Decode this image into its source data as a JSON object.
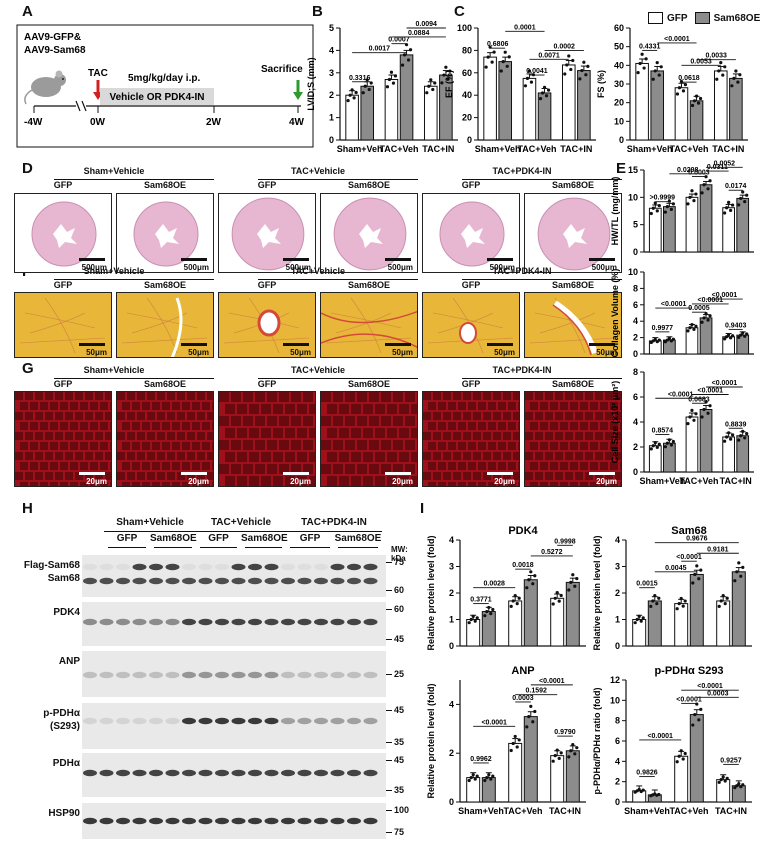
{
  "panels": {
    "A": {
      "letter": "A",
      "model": [
        "AAV9-GFP&",
        "AAV9-Sam68"
      ],
      "tac": "TAC",
      "dose": "5mg/kg/day i.p.",
      "treatment": "Vehicle OR PDK4-IN",
      "sacrifice": "Sacrifice",
      "ticks": [
        "-4W",
        "0W",
        "2W",
        "4W"
      ]
    },
    "B": {
      "letter": "B"
    },
    "C": {
      "letter": "C"
    },
    "D": {
      "letter": "D"
    },
    "E": {
      "letter": "E"
    },
    "F": {
      "letter": "F"
    },
    "G": {
      "letter": "G"
    },
    "H": {
      "letter": "H"
    },
    "I": {
      "letter": "I"
    }
  },
  "legend": {
    "gfp": "GFP",
    "oe": "Sam68OE",
    "gfp_color": "#ffffff",
    "oe_color": "#8c8c8c"
  },
  "groups3": [
    "Sham+Veh",
    "TAC+Veh",
    "TAC+IN"
  ],
  "histology": {
    "group_titles": [
      "Sham+Vehicle",
      "TAC+Vehicle",
      "TAC+PDK4-IN"
    ],
    "sub_labels": [
      "GFP",
      "Sam68OE"
    ],
    "D_scale": "500μm",
    "F_scale": "50μm",
    "G_scale": "20μm",
    "D_color": "#e7b7d2",
    "F_color": "#e8b73a",
    "G_color": "#a0101a"
  },
  "blot": {
    "group_titles": [
      "Sham+Vehicle",
      "TAC+Vehicle",
      "TAC+PDK4-IN"
    ],
    "sub_labels": [
      "GFP",
      "Sam68OE"
    ],
    "mw_header": [
      "MW:",
      "kDa"
    ],
    "rows": [
      {
        "labels": [
          "Flag-Sam68",
          "Sam68"
        ],
        "mw": [
          "75",
          "60"
        ]
      },
      {
        "labels": [
          "PDK4"
        ],
        "mw": [
          "60",
          "45"
        ]
      },
      {
        "labels": [
          "ANP"
        ],
        "mw": [
          "25"
        ]
      },
      {
        "labels": [
          "p-PDHα",
          "(S293)"
        ],
        "mw": [
          "45",
          "35"
        ]
      },
      {
        "labels": [
          "PDHα"
        ],
        "mw": [
          "45",
          "35"
        ]
      },
      {
        "labels": [
          "HSP90"
        ],
        "mw": [
          "100",
          "75"
        ]
      }
    ]
  },
  "chart_data": [
    {
      "id": "B",
      "type": "bar",
      "ylabel": "LVID;S (mm)",
      "ylim": [
        0,
        5
      ],
      "yticks": [
        0,
        1,
        2,
        3,
        4,
        5
      ],
      "categories": [
        "Sham+Veh",
        "TAC+Veh",
        "TAC+IN"
      ],
      "series": [
        {
          "name": "GFP",
          "values": [
            2.0,
            2.7,
            2.4
          ]
        },
        {
          "name": "Sam68OE",
          "values": [
            2.4,
            3.8,
            2.9
          ]
        }
      ],
      "pvalues": [
        [
          "0.3316",
          0,
          1,
          2.6
        ],
        [
          "0.0017",
          0,
          3,
          3.9
        ],
        [
          "0.0007",
          2,
          3,
          4.3
        ],
        [
          "0.0884",
          2,
          5,
          4.6
        ],
        [
          "0.0094",
          3,
          5,
          5.0
        ]
      ]
    },
    {
      "id": "C1",
      "type": "bar",
      "ylabel": "EF (%)",
      "ylim": [
        0,
        100
      ],
      "yticks": [
        0,
        20,
        40,
        60,
        80,
        100
      ],
      "categories": [
        "Sham+Veh",
        "TAC+Veh",
        "TAC+IN"
      ],
      "series": [
        {
          "name": "GFP",
          "values": [
            74,
            55,
            67
          ]
        },
        {
          "name": "Sam68OE",
          "values": [
            70,
            42,
            62
          ]
        }
      ],
      "pvalues": [
        [
          "0.6806",
          0,
          1,
          82
        ],
        [
          "0.0041",
          2,
          3,
          58
        ],
        [
          "0.0071",
          2,
          4,
          72
        ],
        [
          "0.0002",
          3,
          5,
          80
        ],
        [
          "0.0001",
          1,
          3,
          97
        ]
      ]
    },
    {
      "id": "C2",
      "type": "bar",
      "ylabel": "FS (%)",
      "ylim": [
        0,
        60
      ],
      "yticks": [
        0,
        10,
        20,
        30,
        40,
        50,
        60
      ],
      "categories": [
        "Sham+Veh",
        "TAC+Veh",
        "TAC+IN"
      ],
      "series": [
        {
          "name": "GFP",
          "values": [
            41,
            28,
            37
          ]
        },
        {
          "name": "Sam68OE",
          "values": [
            37,
            21,
            33
          ]
        }
      ],
      "pvalues": [
        [
          "0.4331",
          0,
          1,
          48
        ],
        [
          "0.0618",
          2,
          3,
          31
        ],
        [
          "0.0053",
          2,
          4,
          40
        ],
        [
          "0.0033",
          3,
          5,
          43
        ],
        [
          "<0.0001",
          1,
          3,
          52
        ]
      ]
    },
    {
      "id": "E",
      "type": "bar",
      "ylabel": "HW/TL (mg/mm)",
      "ylim": [
        0,
        15
      ],
      "yticks": [
        0,
        5,
        10,
        15
      ],
      "categories": [
        "Sham+Veh",
        "TAC+Veh",
        "TAC+IN"
      ],
      "series": [
        {
          "name": "GFP",
          "values": [
            8.0,
            10.0,
            8.1
          ]
        },
        {
          "name": "Sam68OE",
          "values": [
            8.3,
            12.3,
            9.8
          ]
        }
      ],
      "pvalues": [
        [
          ">0.9999",
          0,
          1,
          9.2
        ],
        [
          "0.0003",
          2,
          3,
          13.8
        ],
        [
          "0.0174",
          4,
          5,
          11.3
        ],
        [
          "0.0298",
          1,
          3,
          14.3
        ],
        [
          "0.0311",
          3,
          4,
          14.8
        ],
        [
          "0.0052",
          3,
          5,
          15.5
        ]
      ]
    },
    {
      "id": "F",
      "type": "bar",
      "ylabel": "Collagen Volume (%)",
      "ylim": [
        0,
        10
      ],
      "yticks": [
        0,
        2,
        4,
        6,
        8,
        10
      ],
      "categories": [
        "Sham+Veh",
        "TAC+Veh",
        "TAC+IN"
      ],
      "series": [
        {
          "name": "GFP",
          "values": [
            1.6,
            3.2,
            2.1
          ]
        },
        {
          "name": "Sam68OE",
          "values": [
            1.7,
            4.4,
            2.3
          ]
        }
      ],
      "pvalues": [
        [
          "0.9977",
          0,
          1,
          2.7
        ],
        [
          "0.0005",
          2,
          3,
          5.1
        ],
        [
          "0.9403",
          4,
          5,
          3.0
        ],
        [
          "<0.0001",
          0,
          2,
          5.6
        ],
        [
          "<0.0001",
          2,
          4,
          6.1
        ],
        [
          "<0.0001",
          3,
          5,
          6.7
        ]
      ]
    },
    {
      "id": "G",
      "type": "bar",
      "ylabel": "Cell Size (x10² μm²)",
      "ylim": [
        0,
        8
      ],
      "yticks": [
        0,
        2,
        4,
        6,
        8
      ],
      "categories": [
        "Sham+Veh",
        "TAC+Veh",
        "TAC+IN"
      ],
      "series": [
        {
          "name": "GFP",
          "values": [
            2.1,
            4.4,
            2.8
          ]
        },
        {
          "name": "Sam68OE",
          "values": [
            2.3,
            5.0,
            2.9
          ]
        }
      ],
      "pvalues": [
        [
          "0.8574",
          0,
          1,
          3.0
        ],
        [
          "0.0683",
          2,
          3,
          5.5
        ],
        [
          "0.8839",
          4,
          5,
          3.5
        ],
        [
          "<0.0001",
          2,
          4,
          6.2
        ],
        [
          "<0.0001",
          3,
          5,
          6.8
        ],
        [
          "<0.0001",
          0,
          3,
          5.9
        ]
      ]
    },
    {
      "id": "I1",
      "type": "bar",
      "title": "PDK4",
      "ylabel": "Relative protein level (fold)",
      "ylim": [
        0,
        4
      ],
      "yticks": [
        0,
        1,
        2,
        3,
        4
      ],
      "categories": [
        "Sham+Veh",
        "TAC+Veh",
        "TAC+IN"
      ],
      "series": [
        {
          "name": "GFP",
          "values": [
            1.0,
            1.7,
            1.8
          ]
        },
        {
          "name": "Sam68OE",
          "values": [
            1.3,
            2.5,
            2.4
          ]
        }
      ],
      "pvalues": [
        [
          "0.3771",
          0,
          1,
          1.6
        ],
        [
          "0.0028",
          0,
          2,
          2.2
        ],
        [
          "0.0018",
          2,
          3,
          2.9
        ],
        [
          "0.5272",
          3,
          5,
          3.4
        ],
        [
          "0.9998",
          4,
          5,
          3.8
        ]
      ]
    },
    {
      "id": "I2",
      "type": "bar",
      "title": "Sam68",
      "ylabel": "Relative protein level (fold)",
      "ylim": [
        0,
        4
      ],
      "yticks": [
        0,
        1,
        2,
        3,
        4
      ],
      "categories": [
        "Sham+Veh",
        "TAC+Veh",
        "TAC+IN"
      ],
      "series": [
        {
          "name": "GFP",
          "values": [
            1.0,
            1.6,
            1.7
          ]
        },
        {
          "name": "Sam68OE",
          "values": [
            1.7,
            2.7,
            2.8
          ]
        }
      ],
      "pvalues": [
        [
          "0.0015",
          0,
          1,
          2.2
        ],
        [
          "0.0045",
          1,
          3,
          2.8
        ],
        [
          "<0.0001",
          2,
          3,
          3.2
        ],
        [
          "0.9181",
          3,
          5,
          3.5
        ],
        [
          "0.9676",
          1,
          5,
          3.9
        ]
      ]
    },
    {
      "id": "I3",
      "type": "bar",
      "title": "ANP",
      "ylabel": "Relative protein level (fold)",
      "ylim": [
        0,
        5
      ],
      "yticks": [
        0,
        2,
        4
      ],
      "categories": [
        "Sham+Veh",
        "TAC+Veh",
        "TAC+IN"
      ],
      "series": [
        {
          "name": "GFP",
          "values": [
            1.0,
            2.4,
            1.9
          ]
        },
        {
          "name": "Sam68OE",
          "values": [
            1.0,
            3.5,
            2.1
          ]
        }
      ],
      "pvalues": [
        [
          "0.9962",
          0,
          1,
          1.6
        ],
        [
          "<0.0001",
          0,
          2,
          3.1
        ],
        [
          "0.0003",
          2,
          3,
          4.1
        ],
        [
          "0.9790",
          4,
          5,
          2.7
        ],
        [
          "0.1592",
          2,
          4,
          4.4
        ],
        [
          "<0.0001",
          3,
          5,
          4.8
        ]
      ]
    },
    {
      "id": "I4",
      "type": "bar",
      "title": "p-PDHα S293",
      "ylabel": "p-PDHα/PDHα ratio (fold)",
      "ylim": [
        0,
        12
      ],
      "yticks": [
        0,
        2,
        4,
        6,
        8,
        10,
        12
      ],
      "categories": [
        "Sham+Veh",
        "TAC+Veh",
        "TAC+IN"
      ],
      "series": [
        {
          "name": "GFP",
          "values": [
            1.1,
            4.5,
            2.2
          ]
        },
        {
          "name": "Sam68OE",
          "values": [
            0.7,
            8.6,
            1.6
          ]
        }
      ],
      "pvalues": [
        [
          "0.9826",
          0,
          1,
          2.5
        ],
        [
          "<0.0001",
          0,
          2,
          6.1
        ],
        [
          "<0.0001",
          2,
          3,
          9.7
        ],
        [
          "0.9257",
          4,
          5,
          3.7
        ],
        [
          "0.0003",
          3,
          5,
          10.3
        ],
        [
          "<0.0001",
          2,
          5,
          11.0
        ]
      ]
    }
  ]
}
